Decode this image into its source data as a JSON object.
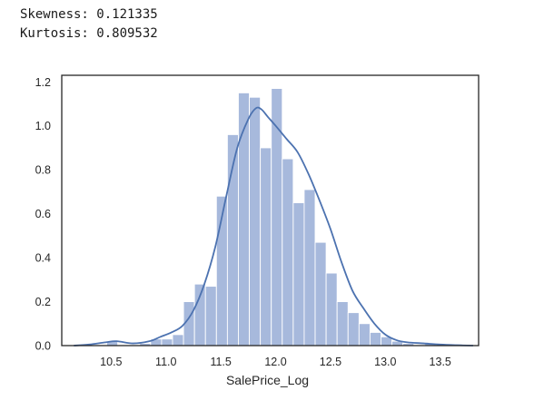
{
  "stats": {
    "skewness_line": "Skewness: 0.121335",
    "kurtosis_line": "Kurtosis: 0.809532"
  },
  "chart_data": {
    "type": "bar",
    "subtype": "histogram_with_kde",
    "title": "",
    "xlabel": "SalePrice_Log",
    "ylabel": "",
    "xlim": [
      10.05,
      13.85
    ],
    "ylim": [
      0,
      1.23
    ],
    "xticks": [
      10.5,
      11.0,
      11.5,
      12.0,
      12.5,
      13.0,
      13.5
    ],
    "xtick_labels": [
      "10.5",
      "11.0",
      "11.5",
      "12.0",
      "12.5",
      "13.0",
      "13.5"
    ],
    "yticks": [
      0.0,
      0.2,
      0.4,
      0.6,
      0.8,
      1.0,
      1.2
    ],
    "ytick_labels": [
      "0.0",
      "0.2",
      "0.4",
      "0.6",
      "0.8",
      "1.0",
      "1.2"
    ],
    "grid": false,
    "colors": {
      "bars": "#a7b9dc",
      "kde_line": "#4c72b0",
      "frame": "#262626"
    },
    "histogram": {
      "bin_edges": [
        10.46,
        10.56,
        10.66,
        10.76,
        10.86,
        10.96,
        11.06,
        11.16,
        11.26,
        11.36,
        11.46,
        11.56,
        11.66,
        11.76,
        11.86,
        11.96,
        12.06,
        12.16,
        12.26,
        12.36,
        12.46,
        12.56,
        12.66,
        12.76,
        12.86,
        12.96,
        13.06,
        13.16,
        13.26,
        13.36,
        13.46,
        13.56
      ],
      "density": [
        0.02,
        0.0,
        0.0,
        0.01,
        0.03,
        0.03,
        0.05,
        0.2,
        0.28,
        0.27,
        0.68,
        0.96,
        1.15,
        1.13,
        0.9,
        1.17,
        0.85,
        0.65,
        0.71,
        0.47,
        0.33,
        0.2,
        0.15,
        0.1,
        0.06,
        0.04,
        0.02,
        0.01,
        0.0,
        0.01,
        0.0
      ]
    },
    "kde": {
      "x": [
        10.16,
        10.3,
        10.45,
        10.55,
        10.7,
        10.85,
        10.95,
        11.05,
        11.15,
        11.25,
        11.35,
        11.45,
        11.55,
        11.65,
        11.75,
        11.82,
        11.87,
        11.93,
        12.0,
        12.1,
        12.2,
        12.3,
        12.4,
        12.5,
        12.6,
        12.7,
        12.8,
        12.9,
        13.0,
        13.1,
        13.2,
        13.35,
        13.5,
        13.65,
        13.8
      ],
      "y": [
        0.0,
        0.005,
        0.015,
        0.02,
        0.01,
        0.02,
        0.04,
        0.06,
        0.09,
        0.16,
        0.28,
        0.45,
        0.68,
        0.9,
        1.03,
        1.08,
        1.075,
        1.04,
        1.0,
        0.94,
        0.88,
        0.78,
        0.66,
        0.53,
        0.38,
        0.25,
        0.17,
        0.1,
        0.05,
        0.025,
        0.015,
        0.01,
        0.005,
        0.002,
        0.0
      ]
    }
  }
}
